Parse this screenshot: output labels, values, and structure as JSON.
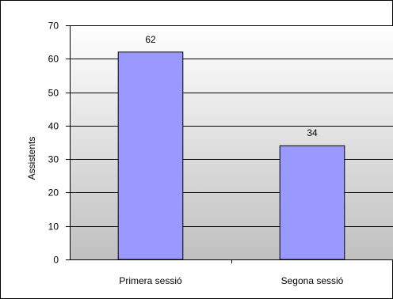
{
  "chart_data": {
    "type": "bar",
    "categories": [
      "Primera sessió",
      "Segona sessió"
    ],
    "values": [
      62,
      34
    ],
    "data_labels": [
      "62",
      "34"
    ],
    "title": "",
    "xlabel": "",
    "ylabel": "Assistents",
    "ylim": [
      0,
      70
    ],
    "yticks": [
      0,
      10,
      20,
      30,
      40,
      50,
      60,
      70
    ],
    "grid": true,
    "legend": "none",
    "bar_color": "#9999FF",
    "plot_background": "gradient #ffffff to #c0c0c0"
  }
}
